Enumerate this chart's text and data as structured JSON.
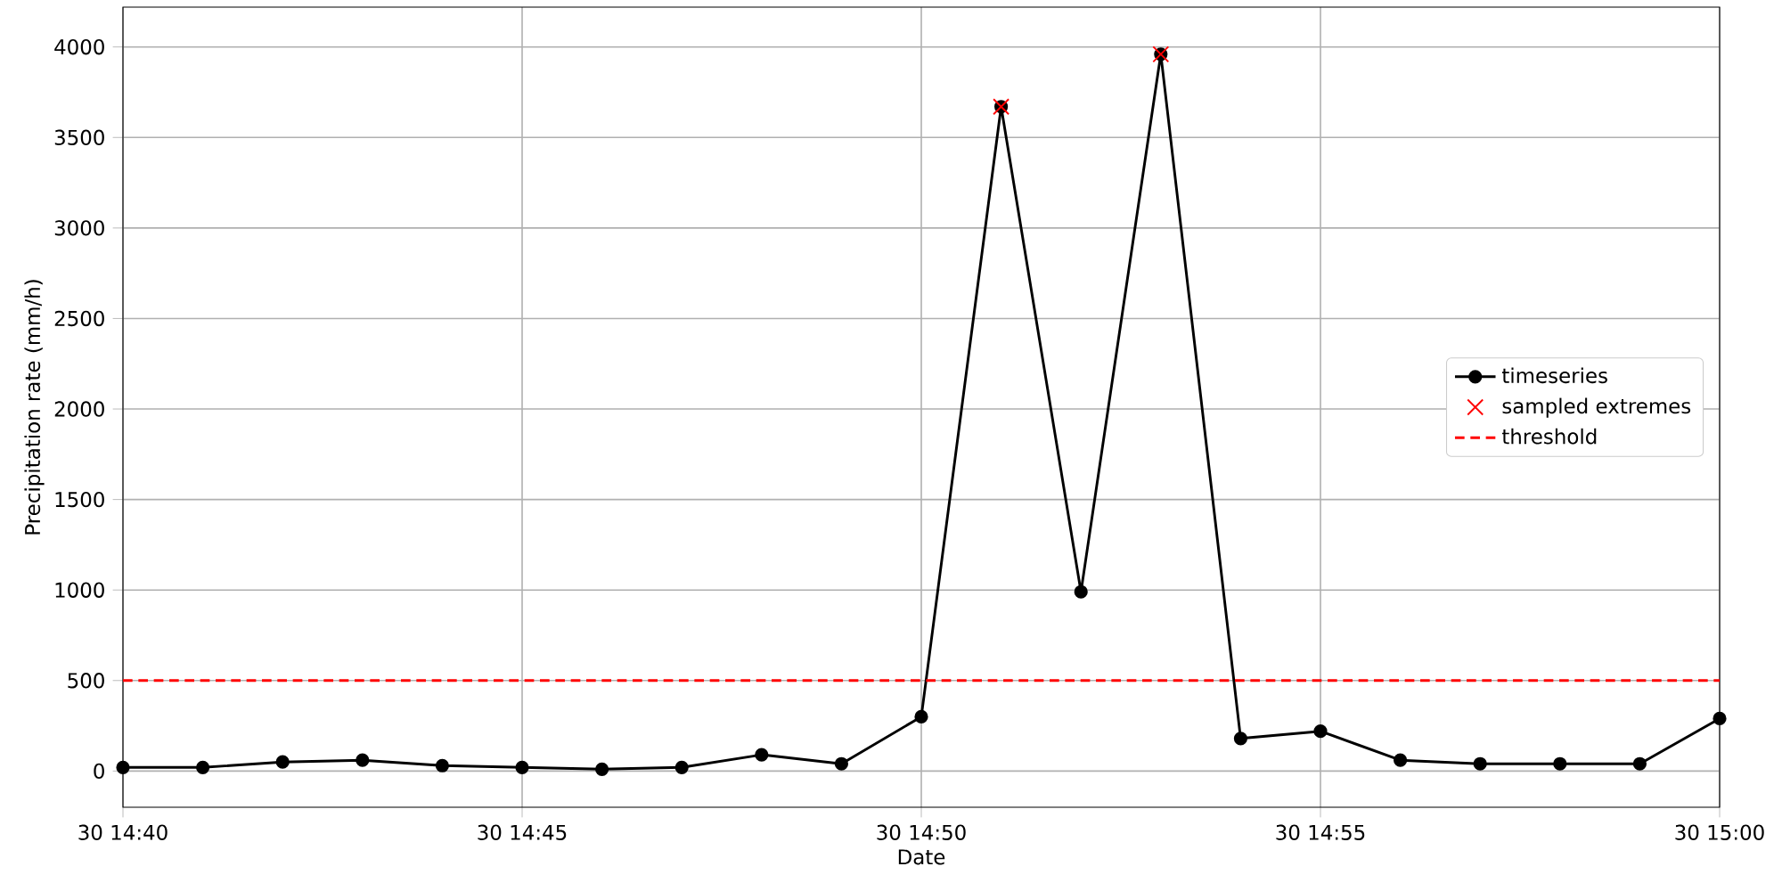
{
  "chart_data": {
    "type": "line",
    "xlabel": "Date",
    "ylabel": "Precipitation rate (mm/h)",
    "categories": [
      "30 14:40",
      null,
      null,
      null,
      null,
      "30 14:45",
      null,
      null,
      null,
      null,
      "30 14:50",
      null,
      null,
      null,
      null,
      "30 14:55",
      null,
      null,
      null,
      null,
      "30 15:00"
    ],
    "ylim": [
      -200,
      4220
    ],
    "yticks": [
      0,
      500,
      1000,
      1500,
      2000,
      2500,
      3000,
      3500,
      4000
    ],
    "grid": true,
    "legend": "right",
    "series": [
      {
        "name": "timeseries",
        "color": "#000000",
        "marker": "circle",
        "line_style": "solid",
        "values": [
          20,
          20,
          50,
          60,
          30,
          20,
          10,
          20,
          90,
          40,
          300,
          3670,
          990,
          3960,
          180,
          220,
          60,
          40,
          40,
          40,
          290
        ]
      },
      {
        "name": "sampled extremes",
        "type": "scatter",
        "color": "#ff0000",
        "marker": "cross",
        "values": [
          null,
          null,
          null,
          null,
          null,
          null,
          null,
          null,
          null,
          null,
          null,
          3670,
          null,
          3960,
          null,
          null,
          null,
          null,
          null,
          null,
          null
        ]
      }
    ],
    "ref_lines": [
      {
        "axis": "y",
        "value": 500,
        "label": "threshold",
        "color": "#ff0000",
        "line_style": "dashed"
      }
    ]
  }
}
